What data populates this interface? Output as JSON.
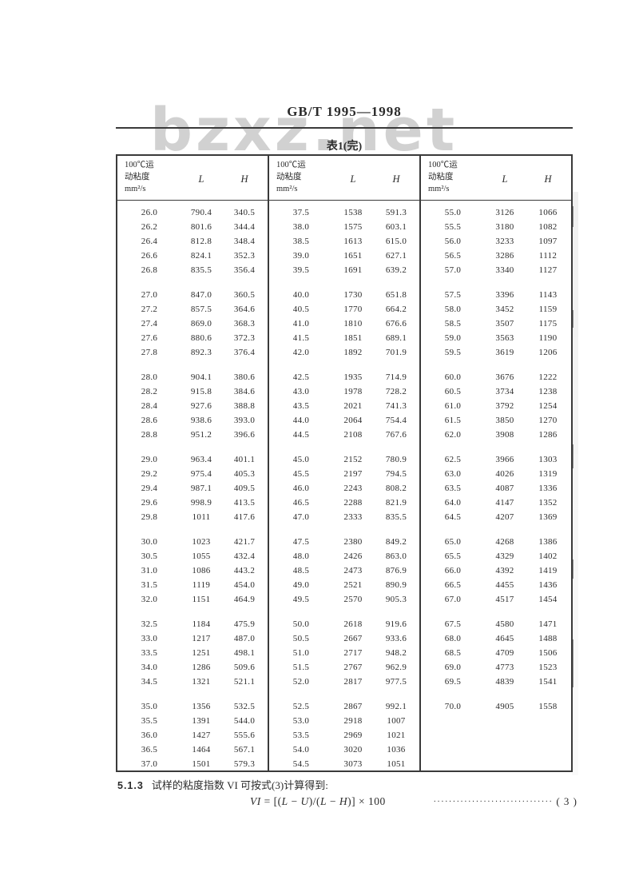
{
  "page": {
    "doc_number": "GB/T 1995—1998",
    "table_title": "表1(完)",
    "watermark": "bzxz.net"
  },
  "table": {
    "header": {
      "viscosity_lines": [
        "100℃运",
        "动粘度",
        "mm²/s"
      ],
      "l_label": "L",
      "h_label": "H"
    },
    "groups": [
      {
        "blocks": [
          [
            [
              "26.0",
              "790.4",
              "340.5"
            ],
            [
              "26.2",
              "801.6",
              "344.4"
            ],
            [
              "26.4",
              "812.8",
              "348.4"
            ],
            [
              "26.6",
              "824.1",
              "352.3"
            ],
            [
              "26.8",
              "835.5",
              "356.4"
            ]
          ],
          [
            [
              "27.0",
              "847.0",
              "360.5"
            ],
            [
              "27.2",
              "857.5",
              "364.6"
            ],
            [
              "27.4",
              "869.0",
              "368.3"
            ],
            [
              "27.6",
              "880.6",
              "372.3"
            ],
            [
              "27.8",
              "892.3",
              "376.4"
            ]
          ],
          [
            [
              "28.0",
              "904.1",
              "380.6"
            ],
            [
              "28.2",
              "915.8",
              "384.6"
            ],
            [
              "28.4",
              "927.6",
              "388.8"
            ],
            [
              "28.6",
              "938.6",
              "393.0"
            ],
            [
              "28.8",
              "951.2",
              "396.6"
            ]
          ],
          [
            [
              "29.0",
              "963.4",
              "401.1"
            ],
            [
              "29.2",
              "975.4",
              "405.3"
            ],
            [
              "29.4",
              "987.1",
              "409.5"
            ],
            [
              "29.6",
              "998.9",
              "413.5"
            ],
            [
              "29.8",
              "1011",
              "417.6"
            ]
          ],
          [
            [
              "30.0",
              "1023",
              "421.7"
            ],
            [
              "30.5",
              "1055",
              "432.4"
            ],
            [
              "31.0",
              "1086",
              "443.2"
            ],
            [
              "31.5",
              "1119",
              "454.0"
            ],
            [
              "32.0",
              "1151",
              "464.9"
            ]
          ],
          [
            [
              "32.5",
              "1184",
              "475.9"
            ],
            [
              "33.0",
              "1217",
              "487.0"
            ],
            [
              "33.5",
              "1251",
              "498.1"
            ],
            [
              "34.0",
              "1286",
              "509.6"
            ],
            [
              "34.5",
              "1321",
              "521.1"
            ]
          ],
          [
            [
              "35.0",
              "1356",
              "532.5"
            ],
            [
              "35.5",
              "1391",
              "544.0"
            ],
            [
              "36.0",
              "1427",
              "555.6"
            ],
            [
              "36.5",
              "1464",
              "567.1"
            ],
            [
              "37.0",
              "1501",
              "579.3"
            ]
          ]
        ]
      },
      {
        "blocks": [
          [
            [
              "37.5",
              "1538",
              "591.3"
            ],
            [
              "38.0",
              "1575",
              "603.1"
            ],
            [
              "38.5",
              "1613",
              "615.0"
            ],
            [
              "39.0",
              "1651",
              "627.1"
            ],
            [
              "39.5",
              "1691",
              "639.2"
            ]
          ],
          [
            [
              "40.0",
              "1730",
              "651.8"
            ],
            [
              "40.5",
              "1770",
              "664.2"
            ],
            [
              "41.0",
              "1810",
              "676.6"
            ],
            [
              "41.5",
              "1851",
              "689.1"
            ],
            [
              "42.0",
              "1892",
              "701.9"
            ]
          ],
          [
            [
              "42.5",
              "1935",
              "714.9"
            ],
            [
              "43.0",
              "1978",
              "728.2"
            ],
            [
              "43.5",
              "2021",
              "741.3"
            ],
            [
              "44.0",
              "2064",
              "754.4"
            ],
            [
              "44.5",
              "2108",
              "767.6"
            ]
          ],
          [
            [
              "45.0",
              "2152",
              "780.9"
            ],
            [
              "45.5",
              "2197",
              "794.5"
            ],
            [
              "46.0",
              "2243",
              "808.2"
            ],
            [
              "46.5",
              "2288",
              "821.9"
            ],
            [
              "47.0",
              "2333",
              "835.5"
            ]
          ],
          [
            [
              "47.5",
              "2380",
              "849.2"
            ],
            [
              "48.0",
              "2426",
              "863.0"
            ],
            [
              "48.5",
              "2473",
              "876.9"
            ],
            [
              "49.0",
              "2521",
              "890.9"
            ],
            [
              "49.5",
              "2570",
              "905.3"
            ]
          ],
          [
            [
              "50.0",
              "2618",
              "919.6"
            ],
            [
              "50.5",
              "2667",
              "933.6"
            ],
            [
              "51.0",
              "2717",
              "948.2"
            ],
            [
              "51.5",
              "2767",
              "962.9"
            ],
            [
              "52.0",
              "2817",
              "977.5"
            ]
          ],
          [
            [
              "52.5",
              "2867",
              "992.1"
            ],
            [
              "53.0",
              "2918",
              "1007"
            ],
            [
              "53.5",
              "2969",
              "1021"
            ],
            [
              "54.0",
              "3020",
              "1036"
            ],
            [
              "54.5",
              "3073",
              "1051"
            ]
          ]
        ]
      },
      {
        "blocks": [
          [
            [
              "55.0",
              "3126",
              "1066"
            ],
            [
              "55.5",
              "3180",
              "1082"
            ],
            [
              "56.0",
              "3233",
              "1097"
            ],
            [
              "56.5",
              "3286",
              "1112"
            ],
            [
              "57.0",
              "3340",
              "1127"
            ]
          ],
          [
            [
              "57.5",
              "3396",
              "1143"
            ],
            [
              "58.0",
              "3452",
              "1159"
            ],
            [
              "58.5",
              "3507",
              "1175"
            ],
            [
              "59.0",
              "3563",
              "1190"
            ],
            [
              "59.5",
              "3619",
              "1206"
            ]
          ],
          [
            [
              "60.0",
              "3676",
              "1222"
            ],
            [
              "60.5",
              "3734",
              "1238"
            ],
            [
              "61.0",
              "3792",
              "1254"
            ],
            [
              "61.5",
              "3850",
              "1270"
            ],
            [
              "62.0",
              "3908",
              "1286"
            ]
          ],
          [
            [
              "62.5",
              "3966",
              "1303"
            ],
            [
              "63.0",
              "4026",
              "1319"
            ],
            [
              "63.5",
              "4087",
              "1336"
            ],
            [
              "64.0",
              "4147",
              "1352"
            ],
            [
              "64.5",
              "4207",
              "1369"
            ]
          ],
          [
            [
              "65.0",
              "4268",
              "1386"
            ],
            [
              "65.5",
              "4329",
              "1402"
            ],
            [
              "66.0",
              "4392",
              "1419"
            ],
            [
              "66.5",
              "4455",
              "1436"
            ],
            [
              "67.0",
              "4517",
              "1454"
            ]
          ],
          [
            [
              "67.5",
              "4580",
              "1471"
            ],
            [
              "68.0",
              "4645",
              "1488"
            ],
            [
              "68.5",
              "4709",
              "1506"
            ],
            [
              "69.0",
              "4773",
              "1523"
            ],
            [
              "69.5",
              "4839",
              "1541"
            ]
          ],
          [
            [
              "70.0",
              "4905",
              "1558"
            ]
          ]
        ]
      }
    ]
  },
  "footer": {
    "clause_number": "5.1.3",
    "clause_text": "试样的粘度指数 VI 可按式(3)计算得到:",
    "formula_parts": [
      {
        "text": "VI",
        "italic": true
      },
      {
        "text": " = [(",
        "italic": false
      },
      {
        "text": "L",
        "italic": true
      },
      {
        "text": " − ",
        "italic": false
      },
      {
        "text": "U",
        "italic": true
      },
      {
        "text": ")/(",
        "italic": false
      },
      {
        "text": "L",
        "italic": true
      },
      {
        "text": " − ",
        "italic": false
      },
      {
        "text": "H",
        "italic": true
      },
      {
        "text": ")] × 100",
        "italic": false
      }
    ],
    "leader_dots": "·······························",
    "formula_number": "( 3 )"
  }
}
